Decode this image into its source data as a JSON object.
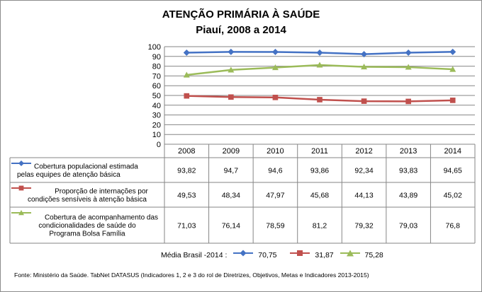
{
  "chart_data": {
    "type": "line",
    "title": "ATENÇÃO PRIMÁRIA À SAÚDE",
    "subtitle": "Piauí, 2008 a 2014",
    "categories": [
      "2008",
      "2009",
      "2010",
      "2011",
      "2012",
      "2013",
      "2014"
    ],
    "ylim": [
      0,
      100
    ],
    "yticks": [
      0,
      10,
      20,
      30,
      40,
      50,
      60,
      70,
      80,
      90,
      100
    ],
    "grid": true,
    "data_table": true,
    "series": [
      {
        "name_lines": [
          "Cobertura  populacional estimada",
          "pelas equipes de atenção básica"
        ],
        "color": "#4472c4",
        "marker": "diamond",
        "values": [
          93.82,
          94.7,
          94.6,
          93.86,
          92.34,
          93.83,
          94.65
        ],
        "labels": [
          "93,82",
          "94,7",
          "94,6",
          "93,86",
          "92,34",
          "93,83",
          "94,65"
        ]
      },
      {
        "name_lines": [
          "Proporção de internações por",
          "condições sensíveis  à atenção básica"
        ],
        "color": "#c0504d",
        "marker": "square",
        "values": [
          49.53,
          48.34,
          47.97,
          45.68,
          44.13,
          43.89,
          45.02
        ],
        "labels": [
          "49,53",
          "48,34",
          "47,97",
          "45,68",
          "44,13",
          "43,89",
          "45,02"
        ]
      },
      {
        "name_lines": [
          "Cobertura de acompanhamento das",
          "condicionalidades de saúde do",
          "Programa Bolsa Família"
        ],
        "color": "#9bbb59",
        "marker": "triangle",
        "values": [
          71.03,
          76.14,
          78.59,
          81.2,
          79.32,
          79.03,
          76.8
        ],
        "labels": [
          "71,03",
          "76,14",
          "78,59",
          "81,2",
          "79,32",
          "79,03",
          "76,8"
        ]
      }
    ],
    "average": {
      "label": "Média Brasil -2014 :",
      "values": [
        "70,75",
        "31,87",
        "75,28"
      ]
    }
  },
  "source": "Fonte: Ministério da Saúde. TabNet DATASUS (Indicadores 1, 2 e 3 do rol de Diretrizes, Objetivos, Metas e Indicadores 2013-2015)"
}
